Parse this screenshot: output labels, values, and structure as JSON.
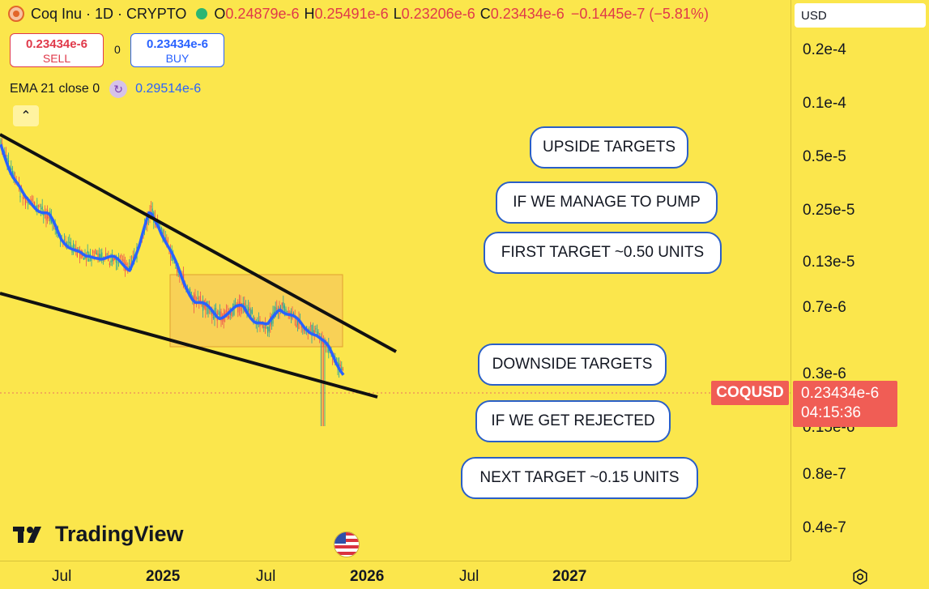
{
  "header": {
    "symbol_title": "Coq Inu · 1D · CRYPTO",
    "ohlc": [
      {
        "k": "O",
        "v": "0.24879e-6"
      },
      {
        "k": "H",
        "v": "0.25491e-6"
      },
      {
        "k": "L",
        "v": "0.23206e-6"
      },
      {
        "k": "C",
        "v": "0.23434e-6"
      }
    ],
    "change": "−0.1445e-7 (−5.81%)"
  },
  "trade": {
    "sell_price": "0.23434e-6",
    "sell_label": "SELL",
    "spread": "0",
    "buy_price": "0.23434e-6",
    "buy_label": "BUY"
  },
  "indicator": {
    "label": "EMA 21 close 0",
    "value": "0.29514e-6"
  },
  "currency": "USD",
  "price_axis": [
    "0.2e-4",
    "0.1e-4",
    "0.5e-5",
    "0.25e-5",
    "0.13e-5",
    "0.7e-6",
    "0.3e-6",
    "0.15e-6",
    "0.8e-7",
    "0.4e-7"
  ],
  "time_axis": [
    {
      "label": "Jul",
      "year": false
    },
    {
      "label": "2025",
      "year": true
    },
    {
      "label": "Jul",
      "year": false
    },
    {
      "label": "2026",
      "year": true
    },
    {
      "label": "Jul",
      "year": false
    },
    {
      "label": "2027",
      "year": true
    }
  ],
  "last_price_tag": {
    "symbol": "COQUSD",
    "price": "0.23434e-6",
    "countdown": "04:15:36"
  },
  "annotations": {
    "upside": "UPSIDE TARGETS",
    "pump": "IF WE MANAGE TO PUMP",
    "first_target": "FIRST TARGET ~0.50 UNITS",
    "downside": "DOWNSIDE TARGETS",
    "rejected": "IF WE GET REJECTED",
    "next_target": "NEXT TARGET ~0.15 UNITS"
  },
  "branding": {
    "logo_text": "TradingView"
  },
  "colors": {
    "background": "#fbe64c",
    "sell": "#e0394a",
    "buy": "#2962ff",
    "ema": "#2962ff",
    "price_tag": "#f05d55",
    "bubble_border": "#2a5fc7",
    "range_box": "#f7c95a"
  },
  "icons": {
    "coin": "coq-inu-coin-icon",
    "live": "market-open-dot-icon",
    "ema": "indicator-settings-icon",
    "collapse": "chevron-up-icon",
    "flag": "us-flag-icon",
    "settings": "gear-icon"
  }
}
